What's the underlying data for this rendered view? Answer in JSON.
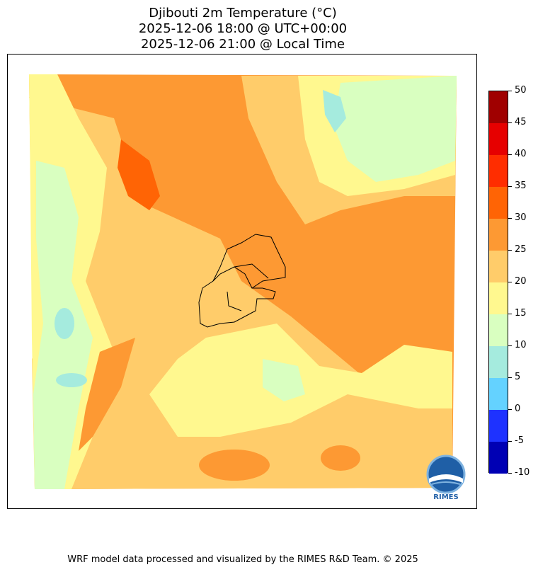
{
  "title": {
    "line1": "Djibouti 2m Temperature (°C)",
    "line2": "2025-12-06 18:00 @ UTC+00:00",
    "line3": "2025-12-06 21:00 @ Local Time"
  },
  "colorbar": {
    "levels": [
      {
        "from": -10,
        "to": -5,
        "color": "#0000b4",
        "label": "-10"
      },
      {
        "from": -5,
        "to": 0,
        "color": "#1e32ff",
        "label": "-5"
      },
      {
        "from": 0,
        "to": 5,
        "color": "#64d2ff",
        "label": "0"
      },
      {
        "from": 5,
        "to": 10,
        "color": "#a5ebde",
        "label": "5"
      },
      {
        "from": 10,
        "to": 15,
        "color": "#d9ffc0",
        "label": "10"
      },
      {
        "from": 15,
        "to": 20,
        "color": "#fff88f",
        "label": "15"
      },
      {
        "from": 20,
        "to": 25,
        "color": "#ffcc6a",
        "label": "20"
      },
      {
        "from": 25,
        "to": 30,
        "color": "#fd9933",
        "label": "25"
      },
      {
        "from": 30,
        "to": 35,
        "color": "#ff6405",
        "label": "30"
      },
      {
        "from": 35,
        "to": 40,
        "color": "#ff2d00",
        "label": "35"
      },
      {
        "from": 40,
        "to": 45,
        "color": "#e60000",
        "label": "40"
      },
      {
        "from": 45,
        "to": 50,
        "color": "#a00000",
        "label": "45"
      }
    ],
    "top_label": "50"
  },
  "logo": {
    "text": "RIMES"
  },
  "footer": "WRF model data processed and visualized by the RIMES R&D Team. © 2025"
}
